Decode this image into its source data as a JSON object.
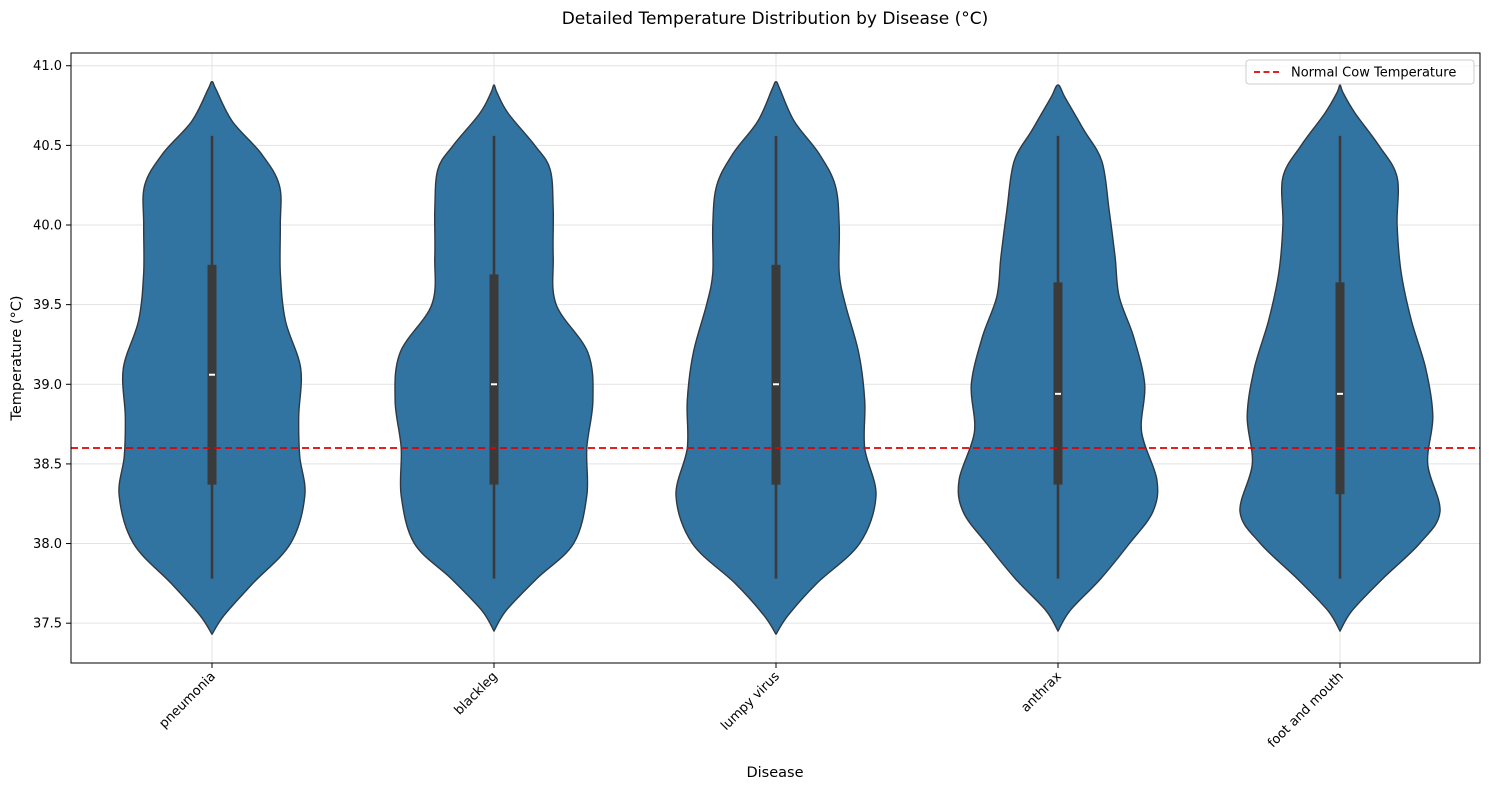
{
  "chart_data": {
    "type": "violin",
    "title": "Detailed Temperature Distribution by Disease (°C)",
    "xlabel": "Disease",
    "ylabel": "Temperature (°C)",
    "ylim": [
      37.25,
      41.08
    ],
    "yticks": [
      37.5,
      38.0,
      38.5,
      39.0,
      39.5,
      40.0,
      40.5,
      41.0
    ],
    "ytick_labels": [
      "37.5",
      "38.0",
      "38.5",
      "39.0",
      "39.5",
      "40.0",
      "40.5",
      "41.0"
    ],
    "categories": [
      "pneumonia",
      "blackleg",
      "lumpy virus",
      "anthrax",
      "foot and mouth"
    ],
    "grid": true,
    "legend_position": "top-right",
    "colors": {
      "violin_fill": "#3274a1",
      "violin_edge": "#2d3a45",
      "box": "#3a3a3a",
      "median": "#ffffff",
      "reference": "#e00000"
    },
    "reference_line": {
      "label": "Normal Cow Temperature",
      "value": 38.6
    },
    "series": [
      {
        "name": "pneumonia",
        "min": 37.78,
        "q1": 38.37,
        "median": 39.06,
        "q3": 39.75,
        "max": 40.56,
        "density": [
          [
            37.43,
            0.0
          ],
          [
            37.55,
            0.12
          ],
          [
            37.75,
            0.4
          ],
          [
            38.0,
            0.77
          ],
          [
            38.3,
            0.91
          ],
          [
            38.55,
            0.86
          ],
          [
            38.8,
            0.85
          ],
          [
            39.1,
            0.87
          ],
          [
            39.4,
            0.72
          ],
          [
            39.7,
            0.67
          ],
          [
            40.0,
            0.67
          ],
          [
            40.25,
            0.66
          ],
          [
            40.45,
            0.48
          ],
          [
            40.65,
            0.2
          ],
          [
            40.85,
            0.04
          ],
          [
            40.9,
            0.0
          ]
        ]
      },
      {
        "name": "blackleg",
        "min": 37.78,
        "q1": 38.37,
        "median": 39.0,
        "q3": 39.69,
        "max": 40.56,
        "density": [
          [
            37.45,
            0.0
          ],
          [
            37.58,
            0.12
          ],
          [
            37.78,
            0.42
          ],
          [
            38.0,
            0.78
          ],
          [
            38.3,
            0.91
          ],
          [
            38.6,
            0.91
          ],
          [
            38.9,
            0.97
          ],
          [
            39.2,
            0.92
          ],
          [
            39.5,
            0.61
          ],
          [
            39.8,
            0.58
          ],
          [
            40.1,
            0.58
          ],
          [
            40.35,
            0.55
          ],
          [
            40.5,
            0.4
          ],
          [
            40.7,
            0.14
          ],
          [
            40.83,
            0.03
          ],
          [
            40.88,
            0.0
          ]
        ]
      },
      {
        "name": "lumpy virus",
        "min": 37.78,
        "q1": 38.37,
        "median": 39.0,
        "q3": 39.75,
        "max": 40.56,
        "density": [
          [
            37.43,
            0.0
          ],
          [
            37.55,
            0.12
          ],
          [
            37.75,
            0.4
          ],
          [
            38.0,
            0.82
          ],
          [
            38.3,
            0.98
          ],
          [
            38.6,
            0.87
          ],
          [
            38.9,
            0.87
          ],
          [
            39.2,
            0.81
          ],
          [
            39.5,
            0.68
          ],
          [
            39.7,
            0.62
          ],
          [
            40.0,
            0.62
          ],
          [
            40.25,
            0.58
          ],
          [
            40.45,
            0.42
          ],
          [
            40.65,
            0.18
          ],
          [
            40.85,
            0.04
          ],
          [
            40.9,
            0.0
          ]
        ]
      },
      {
        "name": "anthrax",
        "min": 37.78,
        "q1": 38.37,
        "median": 38.94,
        "q3": 39.64,
        "max": 40.56,
        "density": [
          [
            37.45,
            0.0
          ],
          [
            37.58,
            0.12
          ],
          [
            37.78,
            0.42
          ],
          [
            38.0,
            0.7
          ],
          [
            38.2,
            0.93
          ],
          [
            38.4,
            0.97
          ],
          [
            38.7,
            0.82
          ],
          [
            39.0,
            0.85
          ],
          [
            39.3,
            0.74
          ],
          [
            39.55,
            0.6
          ],
          [
            39.8,
            0.56
          ],
          [
            40.1,
            0.5
          ],
          [
            40.4,
            0.43
          ],
          [
            40.6,
            0.25
          ],
          [
            40.8,
            0.07
          ],
          [
            40.88,
            0.0
          ]
        ]
      },
      {
        "name": "foot and mouth",
        "min": 37.78,
        "q1": 38.31,
        "median": 38.94,
        "q3": 39.64,
        "max": 40.56,
        "density": [
          [
            37.45,
            0.0
          ],
          [
            37.58,
            0.12
          ],
          [
            37.78,
            0.42
          ],
          [
            38.0,
            0.78
          ],
          [
            38.2,
            0.98
          ],
          [
            38.5,
            0.86
          ],
          [
            38.8,
            0.91
          ],
          [
            39.1,
            0.84
          ],
          [
            39.4,
            0.7
          ],
          [
            39.7,
            0.6
          ],
          [
            40.0,
            0.56
          ],
          [
            40.3,
            0.56
          ],
          [
            40.5,
            0.38
          ],
          [
            40.7,
            0.15
          ],
          [
            40.83,
            0.03
          ],
          [
            40.88,
            0.0
          ]
        ]
      }
    ]
  }
}
